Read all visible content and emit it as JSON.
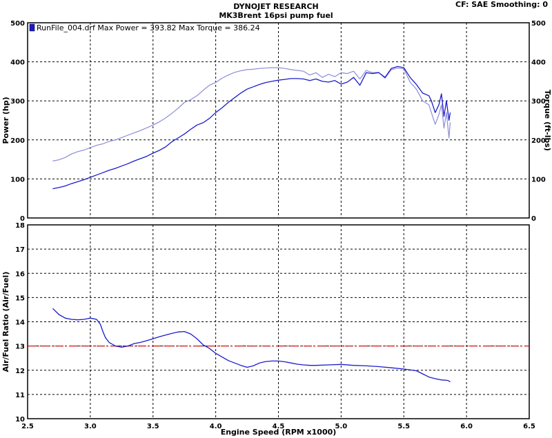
{
  "header": {
    "title": "DYNOJET RESEARCH",
    "subtitle": "MK3Brent 16psi pump fuel",
    "cf_smoothing": "CF: SAE   Smoothing: 0"
  },
  "colors": {
    "power": "#1a1acc",
    "torque": "#8c8cd8",
    "afr": "#1a1acc",
    "target": "#dd1111",
    "legend_swatch": "#1a1acc"
  },
  "chart_data": [
    {
      "type": "line",
      "title": "",
      "xlabel": "",
      "ylabel": "Power (hp)",
      "ylabel_right": "Torque (ft-lbs)",
      "xlim": [
        2.5,
        6.5
      ],
      "ylim": [
        0,
        500
      ],
      "ylim_right": [
        0,
        500
      ],
      "grid": true,
      "x_ticks": [],
      "y_ticks": [
        0,
        100,
        200,
        300,
        400,
        500
      ],
      "y_ticks_right": [
        0,
        100,
        200,
        300,
        400,
        500
      ],
      "legend": {
        "position": "top-left",
        "text": "RunFile_004.drf Max Power = 393.82     Max Torque = 386.24"
      },
      "series": [
        {
          "name": "Power",
          "x": [
            2.7,
            2.75,
            2.8,
            2.85,
            2.9,
            2.95,
            3.0,
            3.05,
            3.1,
            3.15,
            3.2,
            3.25,
            3.3,
            3.35,
            3.4,
            3.45,
            3.5,
            3.55,
            3.6,
            3.65,
            3.7,
            3.75,
            3.8,
            3.85,
            3.9,
            3.95,
            4.0,
            4.05,
            4.1,
            4.15,
            4.2,
            4.25,
            4.3,
            4.35,
            4.4,
            4.45,
            4.5,
            4.55,
            4.6,
            4.65,
            4.7,
            4.75,
            4.8,
            4.85,
            4.9,
            4.95,
            5.0,
            5.05,
            5.1,
            5.15,
            5.2,
            5.25,
            5.3,
            5.35,
            5.4,
            5.45,
            5.5,
            5.55,
            5.6,
            5.65,
            5.7,
            5.72,
            5.75,
            5.78,
            5.8,
            5.82,
            5.84,
            5.86,
            5.87
          ],
          "values": [
            75,
            78,
            82,
            88,
            93,
            98,
            104,
            110,
            116,
            122,
            127,
            133,
            139,
            146,
            152,
            158,
            166,
            173,
            182,
            195,
            205,
            215,
            227,
            238,
            244,
            255,
            270,
            282,
            296,
            308,
            320,
            330,
            336,
            342,
            347,
            350,
            353,
            355,
            357,
            357,
            356,
            352,
            356,
            350,
            348,
            352,
            343,
            348,
            360,
            340,
            372,
            370,
            372,
            360,
            383,
            388,
            385,
            360,
            342,
            320,
            313,
            300,
            270,
            290,
            318,
            260,
            300,
            250,
            270
          ]
        },
        {
          "name": "Torque",
          "x": [
            2.7,
            2.75,
            2.8,
            2.85,
            2.9,
            2.95,
            3.0,
            3.05,
            3.1,
            3.15,
            3.2,
            3.25,
            3.3,
            3.35,
            3.4,
            3.45,
            3.5,
            3.55,
            3.6,
            3.65,
            3.7,
            3.75,
            3.8,
            3.85,
            3.9,
            3.95,
            4.0,
            4.05,
            4.1,
            4.15,
            4.2,
            4.25,
            4.3,
            4.35,
            4.4,
            4.45,
            4.5,
            4.55,
            4.6,
            4.65,
            4.7,
            4.75,
            4.8,
            4.85,
            4.9,
            4.95,
            5.0,
            5.05,
            5.1,
            5.15,
            5.2,
            5.25,
            5.3,
            5.35,
            5.4,
            5.45,
            5.5,
            5.55,
            5.6,
            5.65,
            5.7,
            5.72,
            5.75,
            5.78,
            5.8,
            5.82,
            5.84,
            5.86,
            5.87
          ],
          "values": [
            146,
            149,
            155,
            164,
            170,
            174,
            180,
            186,
            190,
            196,
            200,
            206,
            212,
            218,
            224,
            231,
            238,
            246,
            256,
            268,
            281,
            296,
            303,
            313,
            327,
            340,
            347,
            358,
            366,
            373,
            377,
            380,
            381,
            383,
            384,
            385,
            385,
            383,
            380,
            378,
            376,
            366,
            372,
            360,
            368,
            362,
            372,
            370,
            376,
            356,
            378,
            372,
            373,
            358,
            380,
            384,
            382,
            348,
            330,
            300,
            290,
            270,
            240,
            265,
            290,
            230,
            270,
            205,
            245
          ]
        }
      ]
    },
    {
      "type": "line",
      "title": "",
      "xlabel": "Engine Speed (RPM x1000)",
      "ylabel": "Air/Fuel Ratio (Air/Fuel)",
      "xlim": [
        2.5,
        6.5
      ],
      "ylim": [
        10,
        18
      ],
      "grid": true,
      "x_ticks": [
        2.5,
        3.0,
        3.5,
        4.0,
        4.5,
        5.0,
        5.5,
        6.0,
        6.5
      ],
      "y_ticks": [
        10,
        11,
        12,
        13,
        14,
        15,
        16,
        17,
        18
      ],
      "reference_line": {
        "y": 13.0
      },
      "series": [
        {
          "name": "",
          "x": [
            2.7,
            2.75,
            2.8,
            2.85,
            2.9,
            2.95,
            3.0,
            3.05,
            3.08,
            3.1,
            3.12,
            3.15,
            3.2,
            3.25,
            3.3,
            3.35,
            3.4,
            3.45,
            3.5,
            3.55,
            3.6,
            3.65,
            3.7,
            3.75,
            3.8,
            3.85,
            3.9,
            3.95,
            4.0,
            4.05,
            4.1,
            4.15,
            4.2,
            4.25,
            4.3,
            4.35,
            4.4,
            4.45,
            4.5,
            4.55,
            4.6,
            4.65,
            4.7,
            4.75,
            4.8,
            4.9,
            5.0,
            5.1,
            5.2,
            5.3,
            5.4,
            5.5,
            5.6,
            5.65,
            5.7,
            5.75,
            5.8,
            5.85,
            5.87
          ],
          "values": [
            14.55,
            14.3,
            14.15,
            14.1,
            14.08,
            14.1,
            14.15,
            14.1,
            13.9,
            13.6,
            13.35,
            13.15,
            13.0,
            12.95,
            13.0,
            13.1,
            13.15,
            13.22,
            13.3,
            13.38,
            13.45,
            13.52,
            13.58,
            13.6,
            13.5,
            13.3,
            13.05,
            12.9,
            12.7,
            12.55,
            12.4,
            12.3,
            12.2,
            12.12,
            12.18,
            12.3,
            12.36,
            12.38,
            12.38,
            12.35,
            12.3,
            12.25,
            12.22,
            12.2,
            12.2,
            12.22,
            12.24,
            12.2,
            12.18,
            12.15,
            12.1,
            12.05,
            11.98,
            11.85,
            11.72,
            11.65,
            11.6,
            11.58,
            11.52
          ]
        }
      ]
    }
  ]
}
